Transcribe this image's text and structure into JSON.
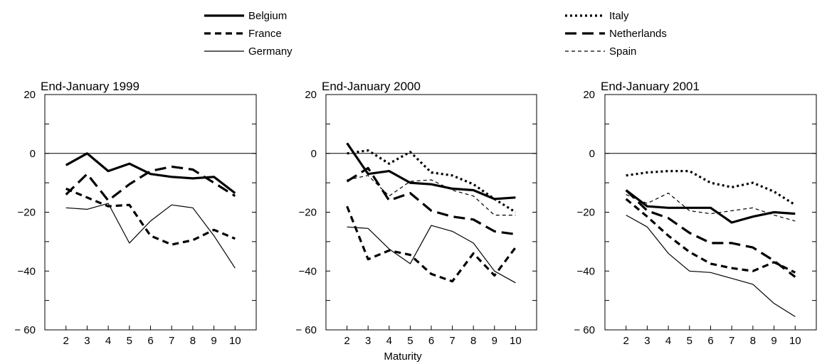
{
  "legend": {
    "items": [
      {
        "name": "Belgium",
        "style": "thick-solid"
      },
      {
        "name": "France",
        "style": "thick-dashed"
      },
      {
        "name": "Germany",
        "style": "thin-solid"
      },
      {
        "name": "Italy",
        "style": "thick-dotted"
      },
      {
        "name": "Netherlands",
        "style": "long-dashed"
      },
      {
        "name": "Spain",
        "style": "thin-dashed"
      }
    ]
  },
  "xlabel": "Maturity",
  "chart_data": [
    {
      "type": "line",
      "title": "End-January 1999",
      "x": [
        2,
        3,
        4,
        5,
        6,
        7,
        8,
        9,
        10
      ],
      "xlim": [
        1,
        11
      ],
      "ylim": [
        -60,
        20
      ],
      "yticks": [
        20,
        0,
        -20,
        -40,
        -60
      ],
      "ytick_labels": [
        "20",
        "0",
        "−20",
        "−40",
        "− 60"
      ],
      "reference_line": 0,
      "series": [
        {
          "name": "Belgium",
          "values": [
            -4,
            0,
            -6,
            -3.5,
            -7,
            -8,
            -8.5,
            -8,
            -13.5
          ]
        },
        {
          "name": "France",
          "values": [
            -12,
            -15,
            -18,
            -17.5,
            -28,
            -31,
            -29.5,
            -26,
            -29
          ]
        },
        {
          "name": "Germany",
          "values": [
            -18.5,
            -19,
            -17,
            -30.5,
            -23,
            -17.5,
            -18.5,
            -28,
            -39
          ]
        },
        {
          "name": "Netherlands",
          "values": [
            -14,
            -7,
            -16,
            -10.5,
            -6,
            -4.5,
            -5.5,
            -10,
            -14.5
          ]
        }
      ]
    },
    {
      "type": "line",
      "title": "End-January 2000",
      "x": [
        2,
        3,
        4,
        5,
        6,
        7,
        8,
        9,
        10
      ],
      "xlim": [
        1,
        11
      ],
      "ylim": [
        -60,
        20
      ],
      "yticks": [
        20,
        0,
        -20,
        -40,
        -60
      ],
      "ytick_labels": [
        "20",
        "0",
        "−20",
        "−40",
        "− 60"
      ],
      "reference_line": 0,
      "series": [
        {
          "name": "Belgium",
          "values": [
            3.5,
            -7,
            -6,
            -10,
            -10.5,
            -12,
            -12.5,
            -15.5,
            -15
          ]
        },
        {
          "name": "France",
          "values": [
            -18,
            -36,
            -33,
            -34.5,
            -41,
            -43.5,
            -34,
            -41.5,
            -32
          ]
        },
        {
          "name": "Germany",
          "values": [
            -25,
            -25.5,
            -32.5,
            -37.5,
            -24.5,
            -26.5,
            -30.5,
            -40,
            -44
          ]
        },
        {
          "name": "Italy",
          "values": [
            0,
            1,
            -3.5,
            0.5,
            -6.5,
            -7.5,
            -10.5,
            -15.5,
            -20
          ]
        },
        {
          "name": "Netherlands",
          "values": [
            -9.5,
            -5,
            -16,
            -13.5,
            -19.5,
            -21.5,
            -22.5,
            -26.5,
            -27.5
          ]
        },
        {
          "name": "Spain",
          "values": [
            -9,
            -7.5,
            -14.5,
            -9.5,
            -9,
            -12.5,
            -14.5,
            -21,
            -21
          ]
        }
      ]
    },
    {
      "type": "line",
      "title": "End-January 2001",
      "x": [
        2,
        3,
        4,
        5,
        6,
        7,
        8,
        9,
        10
      ],
      "xlim": [
        1,
        11
      ],
      "ylim": [
        -60,
        20
      ],
      "yticks": [
        20,
        0,
        -20,
        -40,
        -60
      ],
      "ytick_labels": [
        "20",
        "0",
        "−20",
        "−40",
        "− 60"
      ],
      "reference_line": 0,
      "series": [
        {
          "name": "Belgium",
          "values": [
            -12.5,
            -18,
            -18.5,
            -18.5,
            -18.5,
            -23.5,
            -21.5,
            -20,
            -20.5
          ]
        },
        {
          "name": "France",
          "values": [
            -15.5,
            -21.5,
            -28,
            -33.5,
            -37.5,
            -39,
            -40,
            -37,
            -40.5
          ]
        },
        {
          "name": "Germany",
          "values": [
            -21,
            -25,
            -34,
            -40,
            -40.5,
            -42.5,
            -44.5,
            -51,
            -55.5
          ]
        },
        {
          "name": "Italy",
          "values": [
            -7.5,
            -6.5,
            -6,
            -6,
            -10,
            -11.5,
            -10,
            -13,
            -17.5
          ]
        },
        {
          "name": "Netherlands",
          "values": [
            -12.5,
            -19.5,
            -22,
            -27,
            -30.5,
            -30.5,
            -32,
            -36.5,
            -42
          ]
        },
        {
          "name": "Spain",
          "values": [
            -14,
            -17,
            -13.5,
            -19.5,
            -20.5,
            -19.5,
            -18.5,
            -21,
            -23
          ]
        }
      ]
    }
  ]
}
